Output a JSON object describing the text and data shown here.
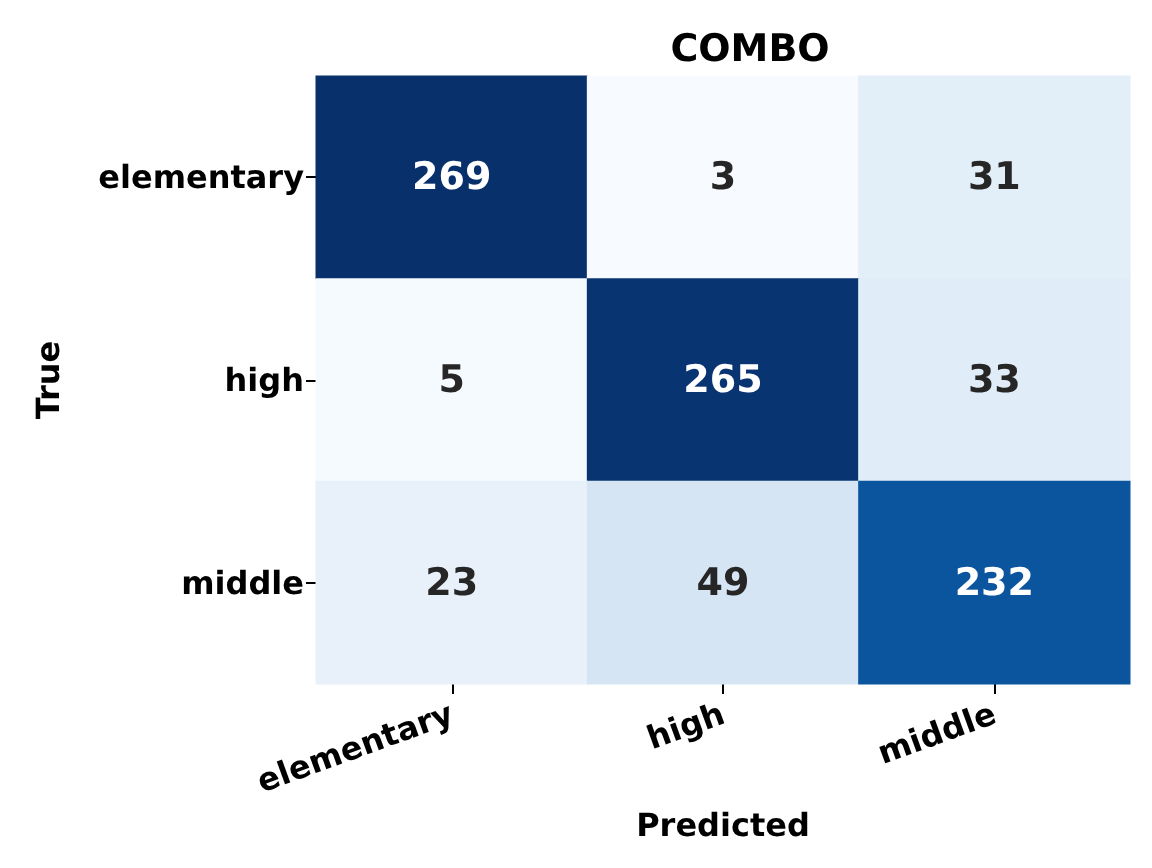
{
  "chart_data": {
    "type": "heatmap",
    "title": "COMBO",
    "xlabel": "Predicted",
    "ylabel": "True",
    "categories": [
      "elementary",
      "high",
      "middle"
    ],
    "y_categories": [
      "elementary",
      "high",
      "middle"
    ],
    "cells": [
      [
        269,
        3,
        31
      ],
      [
        5,
        265,
        33
      ],
      [
        23,
        49,
        232
      ]
    ],
    "data_labels": true
  }
}
